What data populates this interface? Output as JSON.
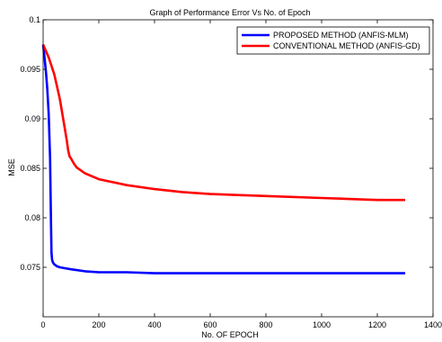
{
  "chart_data": {
    "type": "line",
    "title": "Graph  of  Performance Error Vs No.  of  Epoch",
    "xlabel": "No. OF EPOCH",
    "ylabel": "MSE",
    "xlim": [
      0,
      1400
    ],
    "ylim": [
      0.07,
      0.1
    ],
    "xticks": [
      0,
      200,
      400,
      600,
      800,
      1000,
      1200,
      1400
    ],
    "yticks": [
      0.075,
      0.08,
      0.085,
      0.09,
      0.095,
      0.1
    ],
    "xtick_labels": [
      "0",
      "200",
      "400",
      "600",
      "800",
      "1000",
      "1200",
      "1400"
    ],
    "ytick_labels": [
      "0.075",
      "0.08",
      "0.085",
      "0.09",
      "0.095",
      "0.1"
    ],
    "grid": false,
    "legend_position": "top-right",
    "series": [
      {
        "name": "PROPOSED METHOD (ANFIS-MLM)",
        "color": "#0000ff",
        "x": [
          0,
          5,
          10,
          15,
          20,
          25,
          28,
          30,
          32,
          35,
          40,
          50,
          60,
          80,
          100,
          150,
          200,
          300,
          400,
          600,
          800,
          1000,
          1200,
          1300
        ],
        "y": [
          0.0975,
          0.0962,
          0.0948,
          0.093,
          0.0905,
          0.086,
          0.08,
          0.0765,
          0.0758,
          0.0755,
          0.0753,
          0.0751,
          0.075,
          0.0749,
          0.0748,
          0.0746,
          0.0745,
          0.0745,
          0.0744,
          0.0744,
          0.0744,
          0.0744,
          0.0744,
          0.0744
        ]
      },
      {
        "name": "CONVENTIONAL METHOD (ANFIS-GD)",
        "color": "#ff0000",
        "x": [
          0,
          20,
          40,
          60,
          75,
          85,
          90,
          95,
          100,
          110,
          120,
          150,
          200,
          300,
          400,
          500,
          600,
          800,
          1000,
          1200,
          1300
        ],
        "y": [
          0.0975,
          0.0962,
          0.0945,
          0.092,
          0.0895,
          0.0878,
          0.0868,
          0.0862,
          0.086,
          0.0855,
          0.0851,
          0.0845,
          0.0839,
          0.0833,
          0.0829,
          0.0826,
          0.0824,
          0.0822,
          0.082,
          0.0818,
          0.0818
        ]
      }
    ]
  }
}
